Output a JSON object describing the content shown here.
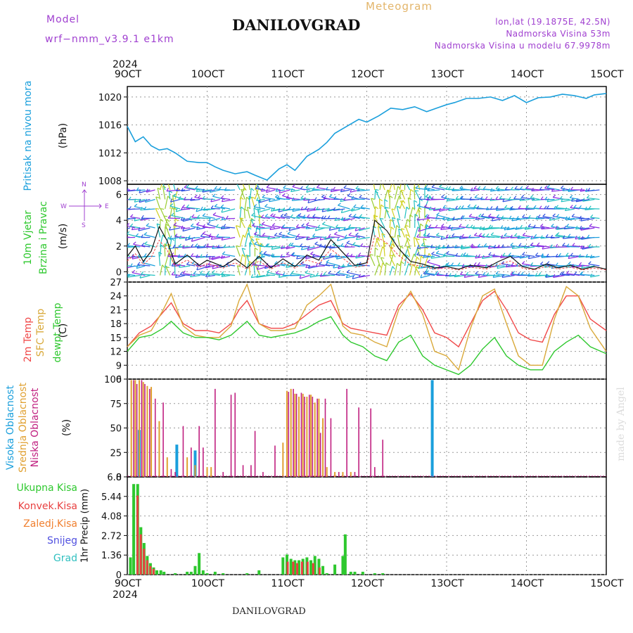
{
  "header": {
    "model_label": "Model",
    "model_name": "wrf−nmm_v3.9.1  e1km",
    "meteogram_label": "Meteogram",
    "station": "DANILOVGRAD",
    "lonlat": "lon,lat (19.1875E, 42.5N)",
    "elev": "Nadmorska Visina 53m",
    "elev_model": "Nadmorska Visina u modelu 67.9978m",
    "watermark": "made by Angel",
    "footer": "DANILOVGRAD"
  },
  "colors": {
    "pressure": "#1a9fdc",
    "temp2m": "#f04848",
    "sfc": "#d9a93a",
    "dewpt": "#2ec82e",
    "high": "#1a9fdc",
    "mid": "#e0a030",
    "low": "#c02080",
    "rain": "#2ec82e",
    "conv": "#e84040",
    "strat": "#f08030",
    "snow": "#5050e0",
    "grad": "#30c0c0",
    "purple": "#a040d0"
  },
  "x_axis": {
    "top_year": "2024",
    "bottom_year": "2024",
    "ticks": [
      "9OCT",
      "10OCT",
      "11OCT",
      "12OCT",
      "13OCT",
      "14OCT",
      "15OCT"
    ]
  },
  "labels": {
    "pressure_title": "Pritisak na nivou mora",
    "pressure_unit": "(hPa)",
    "wind_title1": "10m Vjetar",
    "wind_title2": "Brzina i Pravac",
    "wind_unit": "(m/s)",
    "compass_n": "N",
    "compass_w": "W",
    "compass_e": "E",
    "compass_s": "S",
    "temp_title1": "2m Temp",
    "temp_title2": "SFC Temp",
    "temp_title3": "dewpt Temp",
    "temp_unit": "(C)",
    "cloud_high": "Visoka Oblacnost",
    "cloud_mid": "Srednja Oblacnost",
    "cloud_low": "Niska Oblacnost",
    "cloud_unit": "(%)",
    "precip_total": "Ukupna Kisa",
    "precip_conv": "Konvek.Kisa",
    "precip_strat": "Zaledj.Kisa",
    "precip_snow": "Snijeg",
    "precip_grad": "Grad",
    "precip_unit": "1hr Precip (mm)"
  },
  "chart_data": [
    {
      "type": "line",
      "title": "Pritisak na nivou mora",
      "ylabel": "(hPa)",
      "ylim": [
        1007.5,
        1021.5
      ],
      "yticks": [
        1008,
        1012,
        1016,
        1020
      ],
      "x_days": [
        0,
        0.1,
        0.2,
        0.3,
        0.4,
        0.5,
        0.6,
        0.75,
        0.9,
        1.0,
        1.1,
        1.2,
        1.35,
        1.5,
        1.6,
        1.75,
        1.9,
        2.0,
        2.1,
        2.25,
        2.4,
        2.5,
        2.6,
        2.75,
        2.9,
        3.0,
        3.15,
        3.3,
        3.45,
        3.6,
        3.75,
        3.9,
        4.0,
        4.1,
        4.25,
        4.4,
        4.55,
        4.7,
        4.85,
        5.0,
        5.15,
        5.3,
        5.45,
        5.6,
        5.75,
        5.85,
        6.0
      ],
      "values": [
        1015.8,
        1013.6,
        1014.3,
        1013.0,
        1012.4,
        1012.6,
        1012.0,
        1010.8,
        1010.6,
        1010.6,
        1010.0,
        1009.5,
        1009.0,
        1009.3,
        1008.8,
        1008.1,
        1009.7,
        1010.3,
        1009.5,
        1011.5,
        1012.5,
        1013.5,
        1014.8,
        1015.8,
        1016.8,
        1016.4,
        1017.3,
        1018.4,
        1018.2,
        1018.6,
        1017.9,
        1018.5,
        1018.9,
        1019.2,
        1019.8,
        1019.8,
        1020.0,
        1019.5,
        1020.2,
        1019.2,
        1019.9,
        1020.0,
        1020.4,
        1020.2,
        1019.8,
        1020.3,
        1020.5
      ],
      "series": [
        {
          "name": "Pritisak na nivou mora"
        }
      ]
    },
    {
      "type": "line",
      "title": "10m Vjetar Brzina i Pravac",
      "ylabel": "(m/s)",
      "ylim": [
        -0.8,
        6.8
      ],
      "yticks": [
        0,
        2,
        4,
        6
      ],
      "x_days": [
        0,
        0.1,
        0.2,
        0.3,
        0.4,
        0.5,
        0.6,
        0.75,
        0.9,
        1.0,
        1.2,
        1.35,
        1.5,
        1.65,
        1.8,
        1.95,
        2.1,
        2.25,
        2.4,
        2.55,
        2.7,
        2.85,
        3.0,
        3.1,
        3.25,
        3.4,
        3.55,
        3.7,
        3.85,
        4.0,
        4.15,
        4.3,
        4.5,
        4.65,
        4.8,
        4.95,
        5.1,
        5.25,
        5.4,
        5.55,
        5.7,
        5.85,
        6.0
      ],
      "values": [
        1.2,
        2.0,
        0.8,
        1.6,
        3.5,
        2.4,
        0.6,
        1.3,
        0.5,
        0.9,
        0.4,
        1.0,
        0.3,
        1.2,
        0.3,
        1.0,
        0.4,
        1.3,
        0.9,
        2.5,
        1.5,
        0.5,
        0.7,
        4.0,
        3.2,
        1.8,
        0.8,
        0.6,
        0.3,
        0.4,
        0.2,
        0.5,
        0.3,
        0.8,
        1.2,
        0.4,
        0.2,
        0.6,
        0.3,
        0.5,
        0.2,
        0.4,
        0.2
      ],
      "series": [
        {
          "name": "10m Vjetar"
        }
      ]
    },
    {
      "type": "line",
      "title": "Temp",
      "ylabel": "(C)",
      "ylim": [
        6,
        27
      ],
      "yticks": [
        6,
        9,
        12,
        15,
        18,
        21,
        24,
        27
      ],
      "x_days": [
        0,
        0.15,
        0.3,
        0.45,
        0.55,
        0.7,
        0.85,
        1.0,
        1.15,
        1.3,
        1.4,
        1.5,
        1.65,
        1.8,
        1.95,
        2.1,
        2.25,
        2.4,
        2.55,
        2.7,
        2.8,
        2.95,
        3.1,
        3.25,
        3.4,
        3.55,
        3.7,
        3.85,
        4.0,
        4.15,
        4.3,
        4.45,
        4.6,
        4.75,
        4.9,
        5.05,
        5.2,
        5.35,
        5.5,
        5.65,
        5.8,
        6.0
      ],
      "series": [
        {
          "name": "2m Temp",
          "values": [
            13,
            16,
            17.5,
            20.5,
            22.5,
            18,
            16.5,
            16.5,
            16,
            18,
            21,
            23,
            18,
            17,
            17,
            18,
            20,
            22,
            23,
            18,
            17,
            16.5,
            16,
            15.5,
            22,
            24.5,
            21,
            16,
            15,
            13,
            18,
            23,
            25,
            21,
            16,
            14.5,
            14,
            20,
            24,
            24,
            19,
            16.5
          ]
        },
        {
          "name": "SFC Temp",
          "values": [
            13,
            15.5,
            16.5,
            21,
            24.5,
            17.5,
            15.5,
            15,
            15,
            17.5,
            23,
            26.5,
            18,
            16.5,
            16.5,
            17,
            22,
            24,
            26.5,
            17.5,
            16,
            15.5,
            14,
            13,
            21,
            25,
            20,
            12,
            11,
            8,
            17,
            24,
            25.5,
            18,
            11,
            9,
            9,
            19,
            26,
            24,
            17,
            12
          ]
        },
        {
          "name": "dewpt Temp",
          "values": [
            12,
            15,
            15.5,
            17,
            18.5,
            16,
            15,
            15,
            14.5,
            15.5,
            17,
            18.5,
            15.5,
            15,
            15.5,
            16,
            17,
            18.5,
            19.5,
            15.5,
            14,
            13,
            11,
            10,
            14,
            15.5,
            11,
            9,
            8,
            7,
            9,
            12.5,
            15,
            11,
            9,
            8,
            8,
            12,
            14,
            15.5,
            13,
            11.5
          ]
        }
      ]
    },
    {
      "type": "bar",
      "title": "Oblacnost",
      "ylabel": "(%)",
      "ylim": [
        0,
        100
      ],
      "yticks": [
        0,
        25,
        50,
        75,
        100
      ],
      "series": [
        {
          "name": "Visoka Oblacnost",
          "x_days": [
            0.15,
            0.62,
            0.85,
            3.82
          ],
          "values": [
            48,
            33,
            27,
            99
          ]
        },
        {
          "name": "Srednja Oblacnost",
          "x_days": [
            0.05,
            0.1,
            0.15,
            0.2,
            0.25,
            0.3,
            0.4,
            0.5,
            0.75,
            0.85,
            1.0,
            1.05,
            1.95,
            2.0,
            2.05,
            2.1,
            2.15,
            2.2,
            2.25,
            2.3,
            2.35,
            2.4,
            2.45,
            2.5,
            2.6,
            2.7,
            2.8
          ],
          "values": [
            99,
            99,
            99,
            97,
            93,
            92,
            57,
            20,
            20,
            12,
            10,
            10,
            35,
            88,
            90,
            85,
            82,
            85,
            82,
            84,
            76,
            80,
            60,
            10,
            5,
            5,
            5
          ]
        },
        {
          "name": "Niska Oblacnost",
          "x_days": [
            0.08,
            0.12,
            0.18,
            0.22,
            0.28,
            0.35,
            0.45,
            0.55,
            0.6,
            0.7,
            0.8,
            0.9,
            0.95,
            1.1,
            1.2,
            1.3,
            1.35,
            1.45,
            1.55,
            1.6,
            1.7,
            1.85,
            2.02,
            2.08,
            2.12,
            2.18,
            2.22,
            2.28,
            2.32,
            2.38,
            2.42,
            2.48,
            2.55,
            2.65,
            2.75,
            2.85,
            2.9,
            3.05,
            3.1,
            3.2
          ],
          "values": [
            99,
            95,
            99,
            95,
            90,
            80,
            76,
            8,
            5,
            52,
            30,
            52,
            30,
            90,
            5,
            84,
            86,
            12,
            12,
            47,
            5,
            32,
            87,
            90,
            85,
            86,
            82,
            84,
            82,
            80,
            45,
            80,
            60,
            5,
            90,
            5,
            71,
            70,
            10,
            38
          ]
        }
      ]
    },
    {
      "type": "bar",
      "title": "1hr Precip",
      "ylabel": "1hr Precip (mm)",
      "ylim": [
        0,
        6.8
      ],
      "yticks": [
        0,
        1.36,
        2.72,
        4.08,
        5.44,
        6.8
      ],
      "series": [
        {
          "name": "Ukupna Kisa",
          "x_days": [
            0.04,
            0.08,
            0.13,
            0.17,
            0.21,
            0.25,
            0.29,
            0.33,
            0.37,
            0.42,
            0.46,
            0.6,
            0.75,
            0.8,
            0.85,
            0.9,
            0.95,
            1.0,
            1.1,
            1.2,
            1.5,
            1.65,
            1.95,
            2.0,
            2.05,
            2.1,
            2.15,
            2.2,
            2.25,
            2.3,
            2.35,
            2.4,
            2.45,
            2.5,
            2.6,
            2.7,
            2.73,
            2.8,
            2.85,
            2.95,
            3.1,
            3.2
          ],
          "values": [
            1.2,
            6.3,
            6.3,
            3.3,
            2.2,
            1.3,
            0.8,
            0.5,
            0.3,
            0.3,
            0.2,
            0.1,
            0.2,
            0.2,
            0.6,
            1.5,
            0.3,
            0.1,
            0.2,
            0.1,
            0.1,
            0.3,
            1.2,
            1.4,
            1.1,
            1.0,
            1.0,
            1.1,
            1.2,
            1.0,
            1.3,
            1.1,
            0.6,
            0.1,
            0.7,
            1.3,
            2.8,
            0.2,
            0.2,
            0.2,
            0.1,
            0.1
          ]
        },
        {
          "name": "Konvek.Kisa",
          "x_days": [
            0.12,
            0.16,
            0.2,
            0.24,
            0.28,
            0.32,
            2.0,
            2.07,
            2.12,
            2.18,
            2.25,
            2.32,
            2.4
          ],
          "values": [
            5.5,
            2.8,
            1.8,
            1.0,
            0.6,
            0.4,
            0.9,
            0.9,
            0.8,
            0.9,
            0.9,
            0.8,
            0.5
          ]
        },
        {
          "name": "Zaledj.Kisa",
          "x_days": [],
          "values": []
        },
        {
          "name": "Snijeg",
          "x_days": [],
          "values": []
        },
        {
          "name": "Grad",
          "x_days": [],
          "values": []
        }
      ]
    }
  ]
}
